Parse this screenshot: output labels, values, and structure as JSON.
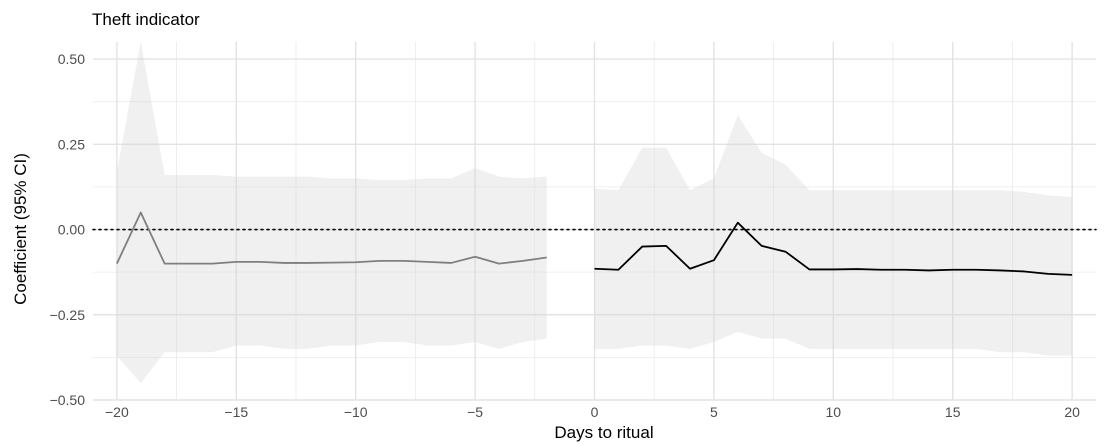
{
  "chart_data": {
    "type": "line",
    "title": "Theft indicator",
    "xlabel": "Days to ritual",
    "ylabel": "Coefficient (95% CI)",
    "xlim": [
      -21,
      21
    ],
    "ylim": [
      -0.5,
      0.55
    ],
    "x_ticks": [
      -20,
      -15,
      -10,
      -5,
      0,
      5,
      10,
      15,
      20
    ],
    "x_tick_labels": [
      "−20",
      "−15",
      "−10",
      "−5",
      "0",
      "5",
      "10",
      "15",
      "20"
    ],
    "y_ticks": [
      -0.5,
      -0.25,
      0,
      0.25,
      0.5
    ],
    "y_tick_labels": [
      "−0.50",
      "−0.25",
      "0.00",
      "0.25",
      "0.50"
    ],
    "grid": true,
    "reference_line": {
      "y": 0,
      "style": "dotted"
    },
    "series": [
      {
        "color": "#7f7f7f",
        "x": [
          -20,
          -19,
          -18,
          -17,
          -16,
          -15,
          -14,
          -13,
          -12,
          -11,
          -10,
          -9,
          -8,
          -7,
          -6,
          -5,
          -4,
          -3,
          -2
        ],
        "y": [
          -0.1,
          0.05,
          -0.1,
          -0.1,
          -0.1,
          -0.095,
          -0.095,
          -0.098,
          -0.098,
          -0.097,
          -0.096,
          -0.092,
          -0.092,
          -0.095,
          -0.098,
          -0.08,
          -0.1,
          -0.092,
          -0.082
        ],
        "ci_lower": [
          -0.37,
          -0.45,
          -0.36,
          -0.36,
          -0.36,
          -0.34,
          -0.34,
          -0.35,
          -0.35,
          -0.34,
          -0.34,
          -0.33,
          -0.33,
          -0.34,
          -0.34,
          -0.33,
          -0.35,
          -0.33,
          -0.32
        ],
        "ci_upper": [
          0.17,
          0.55,
          0.16,
          0.16,
          0.16,
          0.155,
          0.155,
          0.155,
          0.155,
          0.15,
          0.15,
          0.145,
          0.145,
          0.15,
          0.15,
          0.18,
          0.155,
          0.15,
          0.155
        ]
      },
      {
        "color": "#000000",
        "x": [
          0,
          1,
          2,
          3,
          4,
          5,
          6,
          7,
          8,
          9,
          10,
          11,
          12,
          13,
          14,
          15,
          16,
          17,
          18,
          19,
          20
        ],
        "y": [
          -0.115,
          -0.118,
          -0.05,
          -0.048,
          -0.115,
          -0.09,
          0.02,
          -0.048,
          -0.065,
          -0.117,
          -0.117,
          -0.116,
          -0.118,
          -0.118,
          -0.12,
          -0.118,
          -0.118,
          -0.12,
          -0.123,
          -0.13,
          -0.133
        ],
        "ci_lower": [
          -0.35,
          -0.35,
          -0.34,
          -0.34,
          -0.35,
          -0.33,
          -0.3,
          -0.32,
          -0.32,
          -0.35,
          -0.35,
          -0.35,
          -0.35,
          -0.35,
          -0.35,
          -0.35,
          -0.35,
          -0.36,
          -0.36,
          -0.37,
          -0.37
        ],
        "ci_upper": [
          0.12,
          0.115,
          0.24,
          0.24,
          0.115,
          0.15,
          0.335,
          0.225,
          0.19,
          0.115,
          0.115,
          0.115,
          0.115,
          0.115,
          0.115,
          0.115,
          0.115,
          0.115,
          0.11,
          0.1,
          0.095
        ]
      }
    ]
  }
}
